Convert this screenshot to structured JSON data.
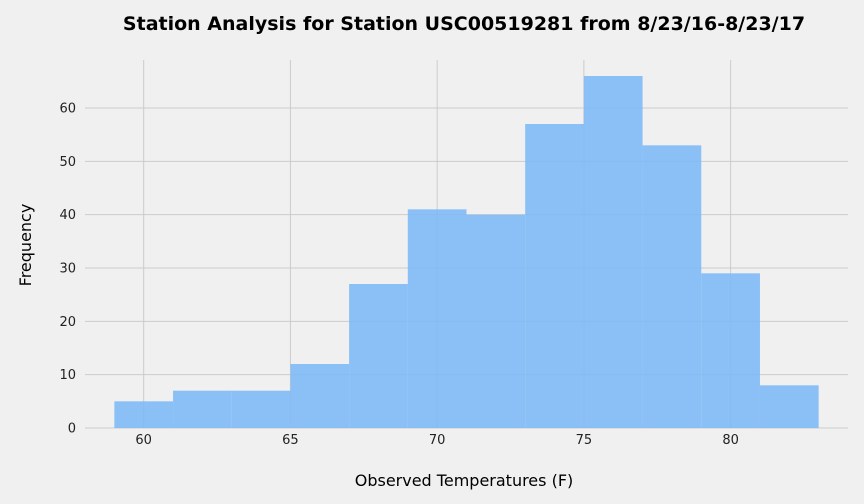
{
  "chart_data": {
    "type": "bar",
    "title": "Station Analysis for Station USC00519281 from 8/23/16-8/23/17",
    "xlabel": "Observed Temperatures (F)",
    "ylabel": "Frequency",
    "xlim": [
      58,
      84
    ],
    "ylim": [
      0,
      69
    ],
    "x_ticks": [
      60,
      65,
      70,
      75,
      80
    ],
    "y_ticks": [
      0,
      10,
      20,
      30,
      40,
      50,
      60
    ],
    "grid": true,
    "legend": "none",
    "bar_color": "#7cb8f7",
    "bins": [
      {
        "start": 59,
        "end": 61,
        "count": 5
      },
      {
        "start": 61,
        "end": 63,
        "count": 7
      },
      {
        "start": 63,
        "end": 65,
        "count": 7
      },
      {
        "start": 65,
        "end": 67,
        "count": 12
      },
      {
        "start": 67,
        "end": 69,
        "count": 27
      },
      {
        "start": 69,
        "end": 71,
        "count": 41
      },
      {
        "start": 71,
        "end": 73,
        "count": 40
      },
      {
        "start": 73,
        "end": 75,
        "count": 57
      },
      {
        "start": 75,
        "end": 77,
        "count": 66
      },
      {
        "start": 77,
        "end": 79,
        "count": 53
      },
      {
        "start": 79,
        "end": 81,
        "count": 29
      },
      {
        "start": 81,
        "end": 83,
        "count": 8
      }
    ]
  }
}
